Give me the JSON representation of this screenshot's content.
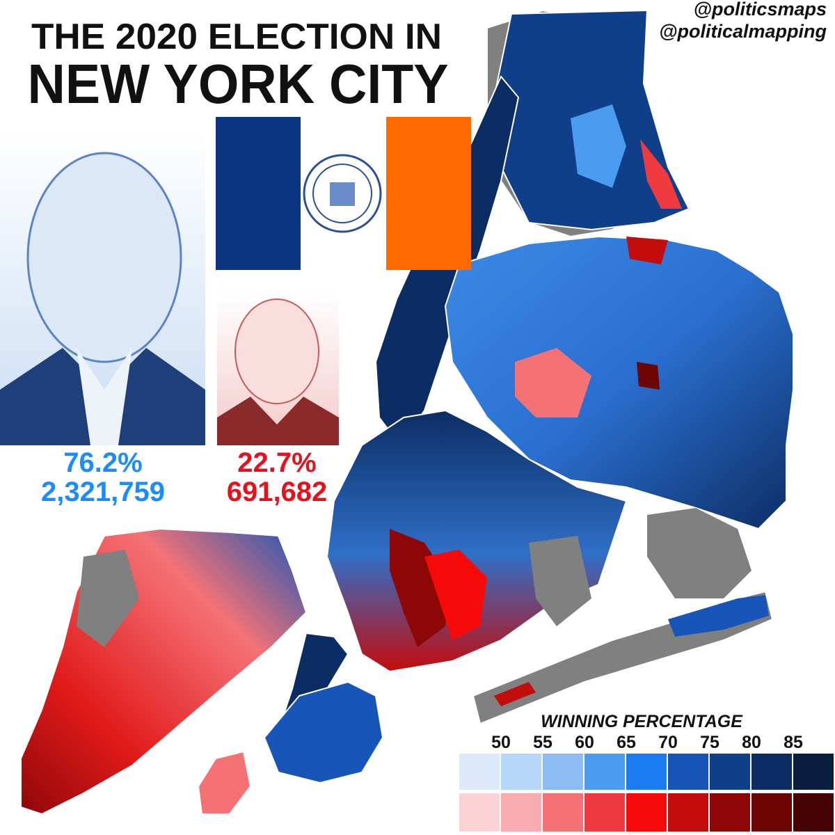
{
  "header": {
    "title_line1": "THE 2020 ELECTION IN",
    "title_line2": "NEW YORK CITY"
  },
  "credits": [
    "@politicsmaps",
    "@politicalmapping"
  ],
  "candidates": [
    {
      "percent": "76.2%",
      "votes": "2,321,759",
      "color": "#1a8cff"
    },
    {
      "percent": "22.7%",
      "votes": "691,682",
      "color": "#e8101a"
    }
  ],
  "legend": {
    "title": "WINNING PERCENTAGE",
    "ticks": [
      50,
      55,
      60,
      65,
      70,
      75,
      80,
      85
    ],
    "democrat_colors": [
      "#dbe9fb",
      "#b8d6f7",
      "#8cbcf3",
      "#4b9cf0",
      "#1a7cf0",
      "#1756b8",
      "#103f8a",
      "#0c2d63",
      "#081e3f"
    ],
    "republican_colors": [
      "#fbd3d6",
      "#f7adb0",
      "#f47276",
      "#ef3a3f",
      "#f70a0a",
      "#c30c0c",
      "#8e0707",
      "#6e0505",
      "#450303"
    ]
  }
}
